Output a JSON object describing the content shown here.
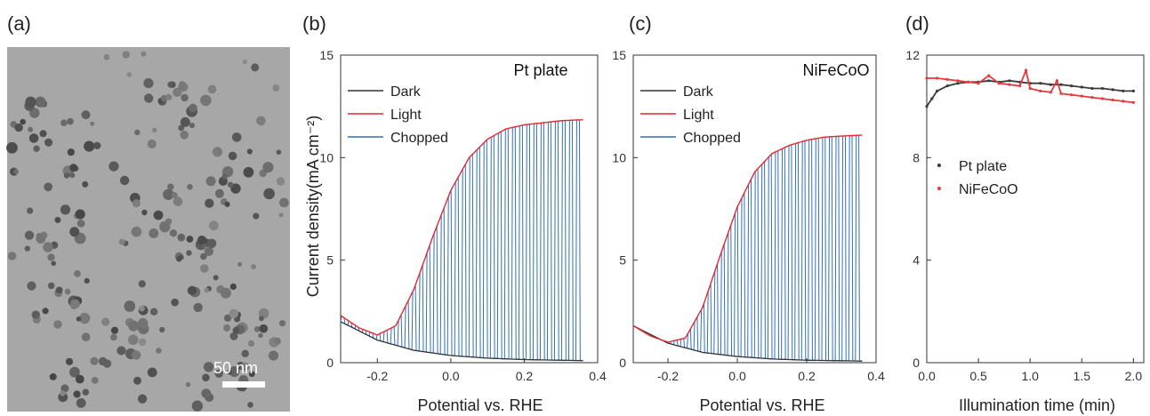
{
  "colors": {
    "dark": "#333333",
    "light": "#e8282b",
    "chopped": "#2f6fc4",
    "pt_series": "#3a3a3a",
    "nifecoo_series": "#e53a3e",
    "tem_bg": "#a7a7a7",
    "particle": "#555555"
  },
  "micrograph": {
    "letter": "(a)",
    "scale_bar": "50 nm"
  },
  "chart_data": [
    {
      "type": "line",
      "letter": "(b)",
      "inset_label": "Pt plate",
      "xlabel": "Potential vs. RHE",
      "ylabel": "Current density(mA cm⁻²)",
      "xlim": [
        -0.3,
        0.4
      ],
      "ylim": [
        0,
        15
      ],
      "xticks": [
        "-0.2",
        "0.0",
        "0.2",
        "0.4"
      ],
      "yticks": [
        "0",
        "5",
        "10",
        "15"
      ],
      "legend": [
        "Dark",
        "Light",
        "Chopped"
      ],
      "series": [
        {
          "name": "Dark",
          "x": [
            -0.3,
            -0.2,
            -0.1,
            0.0,
            0.1,
            0.2,
            0.36
          ],
          "y": [
            2.0,
            1.1,
            0.6,
            0.35,
            0.22,
            0.15,
            0.1
          ]
        },
        {
          "name": "Light",
          "x": [
            -0.3,
            -0.25,
            -0.2,
            -0.15,
            -0.1,
            -0.05,
            0.0,
            0.05,
            0.1,
            0.15,
            0.2,
            0.25,
            0.3,
            0.36
          ],
          "y": [
            2.3,
            1.7,
            1.35,
            1.8,
            3.6,
            6.1,
            8.4,
            10.0,
            10.9,
            11.4,
            11.6,
            11.7,
            11.8,
            11.85
          ]
        },
        {
          "name": "Chopped",
          "x_start": -0.3,
          "x_end": 0.36,
          "cycles": 34
        }
      ]
    },
    {
      "type": "line",
      "letter": "(c)",
      "inset_label": "NiFeCoO",
      "xlabel": "Potential vs. RHE",
      "xlim": [
        -0.3,
        0.4
      ],
      "ylim": [
        0,
        15
      ],
      "xticks": [
        "-0.2",
        "0.0",
        "0.2",
        "0.4"
      ],
      "yticks": [
        "0",
        "5",
        "10",
        "15"
      ],
      "legend": [
        "Dark",
        "Light",
        "Chopped"
      ],
      "series": [
        {
          "name": "Dark",
          "x": [
            -0.3,
            -0.2,
            -0.1,
            0.0,
            0.1,
            0.2,
            0.36
          ],
          "y": [
            1.8,
            0.95,
            0.5,
            0.3,
            0.18,
            0.12,
            0.08
          ]
        },
        {
          "name": "Light",
          "x": [
            -0.3,
            -0.25,
            -0.2,
            -0.15,
            -0.1,
            -0.05,
            0.0,
            0.05,
            0.1,
            0.15,
            0.2,
            0.25,
            0.3,
            0.36
          ],
          "y": [
            1.8,
            1.3,
            1.0,
            1.2,
            2.7,
            5.2,
            7.6,
            9.3,
            10.2,
            10.6,
            10.85,
            11.0,
            11.05,
            11.1
          ]
        },
        {
          "name": "Chopped",
          "x_start": -0.3,
          "x_end": 0.36,
          "cycles": 34
        }
      ]
    },
    {
      "type": "scatter",
      "letter": "(d)",
      "xlabel": "Illumination time (min)",
      "xlim": [
        0,
        2.1
      ],
      "ylim": [
        0,
        12
      ],
      "xticks": [
        "0.0",
        "0.5",
        "1.0",
        "1.5",
        "2.0"
      ],
      "yticks": [
        "0",
        "4",
        "8",
        "12"
      ],
      "legend": [
        "Pt plate",
        "NiFeCoO"
      ],
      "series": [
        {
          "name": "Pt plate",
          "x": [
            0.0,
            0.05,
            0.1,
            0.2,
            0.3,
            0.4,
            0.5,
            0.6,
            0.7,
            0.8,
            0.9,
            1.0,
            1.1,
            1.2,
            1.3,
            1.4,
            1.5,
            1.6,
            1.7,
            1.8,
            1.9,
            2.0
          ],
          "y": [
            10.0,
            10.3,
            10.6,
            10.8,
            10.9,
            10.95,
            10.95,
            11.0,
            10.95,
            11.0,
            10.95,
            10.9,
            10.9,
            10.85,
            10.85,
            10.8,
            10.75,
            10.7,
            10.7,
            10.65,
            10.6,
            10.6
          ]
        },
        {
          "name": "NiFeCoO",
          "x": [
            0.0,
            0.1,
            0.2,
            0.3,
            0.4,
            0.5,
            0.6,
            0.7,
            0.8,
            0.9,
            0.96,
            1.0,
            1.1,
            1.2,
            1.26,
            1.3,
            1.4,
            1.5,
            1.6,
            1.7,
            1.8,
            1.9,
            2.0
          ],
          "y": [
            11.1,
            11.1,
            11.05,
            11.0,
            10.95,
            10.9,
            11.2,
            10.9,
            10.85,
            10.8,
            11.4,
            10.7,
            10.6,
            10.55,
            11.0,
            10.5,
            10.45,
            10.4,
            10.35,
            10.3,
            10.25,
            10.2,
            10.15
          ]
        }
      ]
    }
  ]
}
